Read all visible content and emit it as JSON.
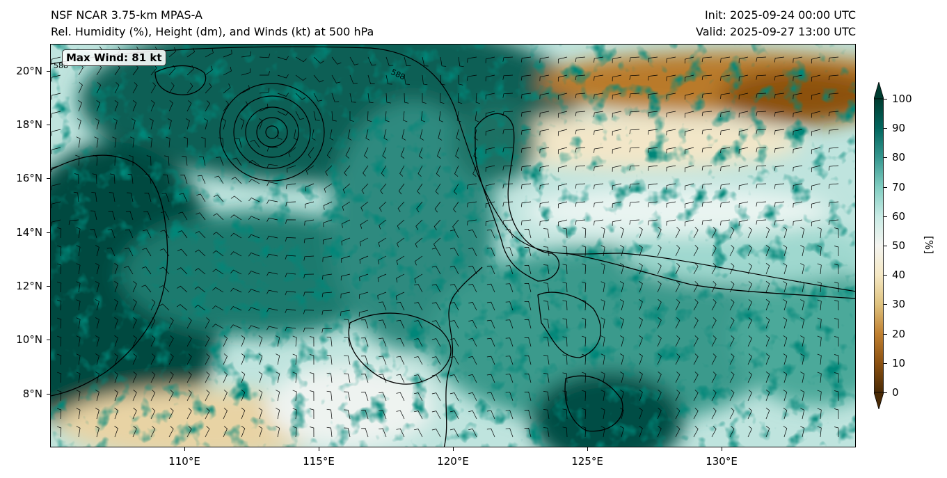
{
  "header": {
    "model_title": "NSF NCAR 3.75-km MPAS-A",
    "field_title": "Rel. Humidity (%), Height (dm), and Winds (kt) at 500 hPa",
    "init_time": "Init: 2025-09-24 00:00 UTC",
    "valid_time": "Valid: 2025-09-27 13:00 UTC"
  },
  "map": {
    "max_wind_label": "Max Wind: 81 kt",
    "contour_labels": [
      "588",
      "588"
    ],
    "lat_labels": [
      "20°N",
      "18°N",
      "16°N",
      "14°N",
      "12°N",
      "10°N",
      "8°N"
    ],
    "lon_labels": [
      "110°E",
      "115°E",
      "120°E",
      "125°E",
      "130°E"
    ],
    "extent": {
      "lon": [
        105,
        135
      ],
      "lat": [
        6,
        21
      ]
    },
    "cyclone_center": {
      "lon": 113.3,
      "lat": 17.8
    }
  },
  "colorbar": {
    "label": "[%]",
    "ticks": [
      "0",
      "10",
      "20",
      "30",
      "40",
      "50",
      "60",
      "70",
      "80",
      "90",
      "100"
    ],
    "range": [
      0,
      100
    ],
    "colormap": "BrBG",
    "colors": [
      "#4a2a05",
      "#8c5110",
      "#c08030",
      "#dfc27e",
      "#f5e8c4",
      "#f4f4f0",
      "#c8ebe5",
      "#80cdc1",
      "#35978f",
      "#01665e",
      "#003c30"
    ]
  }
}
